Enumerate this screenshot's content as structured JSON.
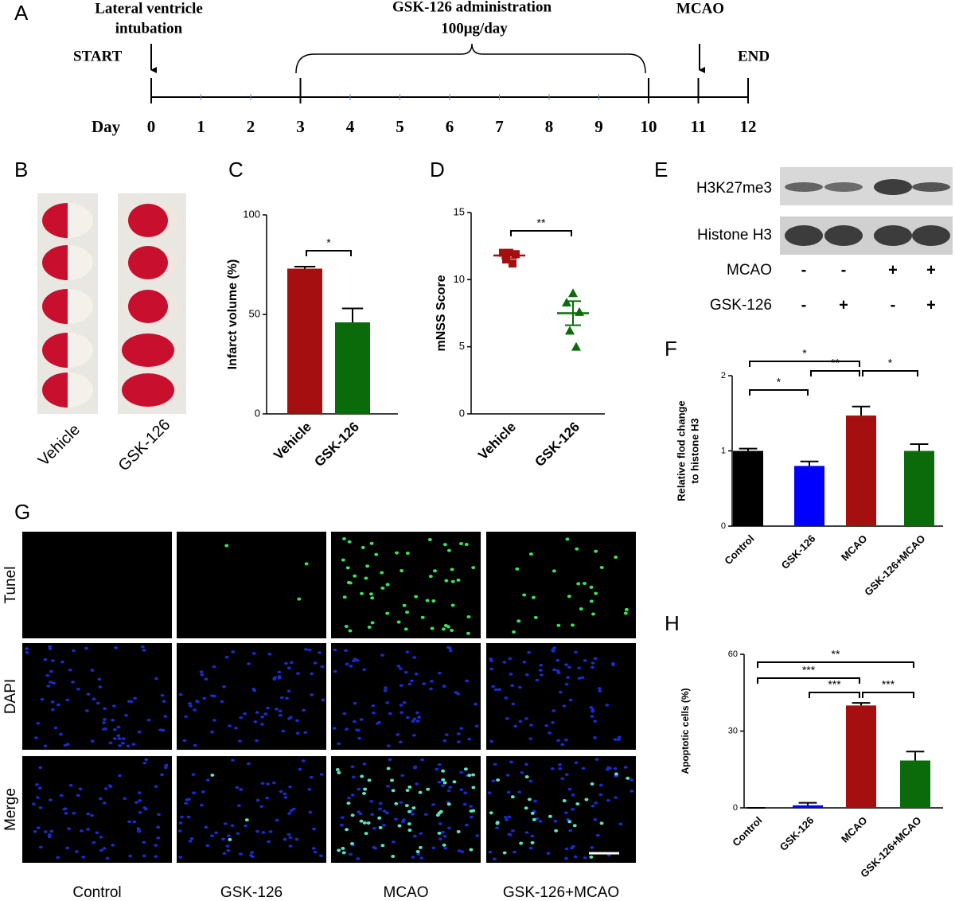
{
  "panel_labels": [
    "A",
    "B",
    "C",
    "D",
    "E",
    "F",
    "G",
    "H"
  ],
  "timeline": {
    "intubation": [
      "Lateral ventricle",
      "intubation"
    ],
    "start": "START",
    "treatment": [
      "GSK-126 administration",
      "100μg/day"
    ],
    "mcao": "MCAO",
    "end": "END",
    "day_label": "Day",
    "days": [
      0,
      1,
      2,
      3,
      4,
      5,
      6,
      7,
      8,
      9,
      10,
      11,
      12
    ]
  },
  "brain_slices": {
    "groups": [
      "Vehicle",
      "GSK-126"
    ]
  },
  "chart_data": [
    {
      "type": "bar",
      "categories": [
        "Vehicle",
        "GSK-126"
      ],
      "values": [
        73,
        46
      ],
      "errors": [
        1,
        7
      ],
      "colors": [
        "#a50f0f",
        "#0b6b0b"
      ],
      "ylabel": "Infarct volume (%)",
      "ylim": [
        0,
        100
      ],
      "yticks": [
        0,
        50,
        100
      ],
      "brackets": [
        {
          "from": 0,
          "to": 1,
          "label": "*"
        }
      ]
    },
    {
      "type": "dot",
      "categories": [
        "Vehicle",
        "GSK-126"
      ],
      "points": [
        [
          12,
          12,
          11.9,
          11.5,
          11.2
        ],
        [
          9,
          8.3,
          7.6,
          6.2,
          5
        ]
      ],
      "means": [
        11.8,
        7.5
      ],
      "errors": [
        0.2,
        0.9
      ],
      "colors": [
        "#a50f0f",
        "#0b6b0b"
      ],
      "markers": [
        "square",
        "triangle"
      ],
      "ylabel": "mNSS Score",
      "ylim": [
        0,
        15
      ],
      "yticks": [
        0,
        5,
        10,
        15
      ],
      "brackets": [
        {
          "from": 0,
          "to": 1,
          "label": "**"
        }
      ]
    },
    {
      "type": "bar",
      "categories": [
        "Control",
        "GSK-126",
        "MCAO",
        "GSK-126+MCAO"
      ],
      "values": [
        1.0,
        0.8,
        1.47,
        1.0
      ],
      "errors": [
        0.03,
        0.06,
        0.12,
        0.09
      ],
      "colors": [
        "#000000",
        "#0000ff",
        "#a50f0f",
        "#0b6b0b"
      ],
      "ylabel": [
        "Relative flod change",
        "to histone H3"
      ],
      "ylim": [
        0,
        2
      ],
      "yticks": [
        0,
        1,
        2
      ],
      "brackets": [
        {
          "from": 0,
          "to": 2,
          "label": "*"
        },
        {
          "from": 0,
          "to": 1,
          "label": "*"
        },
        {
          "from": 1,
          "to": 2,
          "label": "**"
        },
        {
          "from": 2,
          "to": 3,
          "label": "*"
        }
      ]
    },
    {
      "type": "bar",
      "categories": [
        "Control",
        "GSK-126",
        "MCAO",
        "GSK-126+MCAO"
      ],
      "values": [
        0,
        1,
        40,
        18.5
      ],
      "errors": [
        0,
        1,
        1,
        3.5
      ],
      "colors": [
        "#000000",
        "#0000ff",
        "#a50f0f",
        "#0b6b0b"
      ],
      "ylabel": "Apoptotic cells (%)",
      "ylim": [
        0,
        60
      ],
      "yticks": [
        0,
        30,
        60
      ],
      "brackets": [
        {
          "from": 0,
          "to": 3,
          "label": "**"
        },
        {
          "from": 0,
          "to": 2,
          "label": "***"
        },
        {
          "from": 1,
          "to": 2,
          "label": "***"
        },
        {
          "from": 2,
          "to": 3,
          "label": "***"
        }
      ]
    }
  ],
  "western_blot": {
    "bands": [
      "H3K27me3",
      "Histone H3"
    ],
    "conditions": [
      {
        "name": "MCAO",
        "signs": [
          "-",
          "-",
          "+",
          "+"
        ]
      },
      {
        "name": "GSK-126",
        "signs": [
          "-",
          "+",
          "-",
          "+"
        ]
      }
    ]
  },
  "microscopy": {
    "rows": [
      "Tunel",
      "DAPI",
      "Merge"
    ],
    "columns": [
      "Control",
      "GSK-126",
      "MCAO",
      "GSK-126+MCAO"
    ]
  }
}
